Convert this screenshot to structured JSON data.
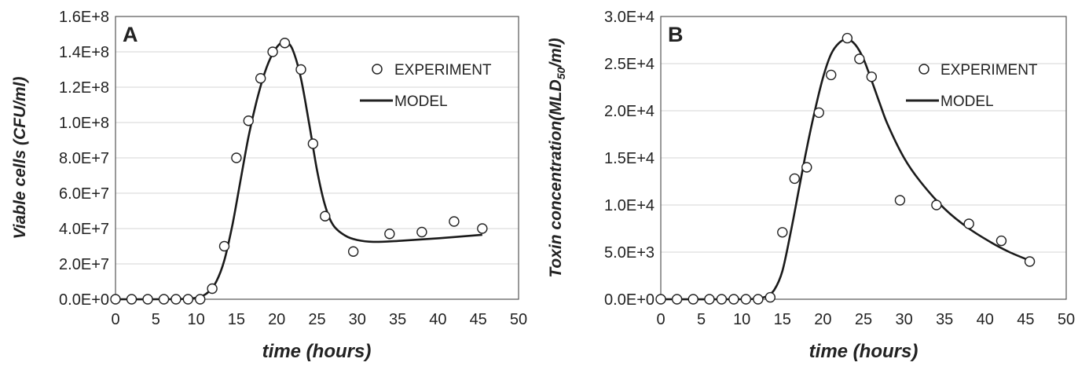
{
  "chart_data": [
    {
      "type": "scatter",
      "panel_label": "A",
      "xlabel": "time (hours)",
      "ylabel": "Viable cells (CFU/ml)",
      "xlim": [
        0,
        50
      ],
      "ylim": [
        0,
        160000000
      ],
      "x_ticks": [
        "0",
        "5",
        "10",
        "15",
        "20",
        "25",
        "30",
        "35",
        "40",
        "45",
        "50"
      ],
      "y_ticks": [
        "0.0E+0",
        "2.0E+7",
        "4.0E+7",
        "6.0E+7",
        "8.0E+7",
        "1.0E+8",
        "1.2E+8",
        "1.4E+8",
        "1.6E+8"
      ],
      "grid": "horizontal",
      "legend_placement": "upper-right",
      "series": [
        {
          "name": "EXPERIMENT",
          "kind": "markers",
          "marker": "open-circle",
          "x": [
            0,
            2,
            4,
            6,
            7.5,
            9,
            10.5,
            12,
            13.5,
            15,
            16.5,
            18,
            19.5,
            21,
            23,
            24.5,
            26,
            29.5,
            34,
            38,
            42,
            45.5
          ],
          "y": [
            0,
            0,
            0,
            0,
            0,
            0,
            0,
            6000000,
            30000000,
            80000000,
            101000000,
            125000000,
            140000000,
            145000000,
            130000000,
            88000000,
            47000000,
            27000000,
            37000000,
            38000000,
            44000000,
            40000000
          ]
        },
        {
          "name": "MODEL",
          "kind": "line",
          "x": [
            0,
            5,
            9,
            10.5,
            11.5,
            12.5,
            13.5,
            14.5,
            15.5,
            16.5,
            17.5,
            18.5,
            19.5,
            20.5,
            21.2,
            22,
            23,
            24,
            25,
            26,
            27,
            28.5,
            30,
            32,
            35,
            40,
            45.5
          ],
          "y": [
            0,
            0,
            300000,
            1500000,
            4000000,
            10000000,
            22000000,
            42000000,
            67000000,
            92000000,
            112000000,
            128000000,
            139000000,
            145000000,
            145500000,
            141000000,
            125000000,
            100000000,
            73000000,
            53000000,
            42000000,
            36000000,
            33500000,
            32500000,
            33000000,
            34500000,
            36500000
          ]
        }
      ]
    },
    {
      "type": "scatter",
      "panel_label": "B",
      "xlabel": "time (hours)",
      "ylabel_main": "Toxin concentration(MLD",
      "ylabel_sub": "50",
      "ylabel_end": "/ml)",
      "xlim": [
        0,
        50
      ],
      "ylim": [
        0,
        30000
      ],
      "x_ticks": [
        "0",
        "5",
        "10",
        "15",
        "20",
        "25",
        "30",
        "35",
        "40",
        "45",
        "50"
      ],
      "y_ticks": [
        "0.0E+0",
        "5.0E+3",
        "1.0E+4",
        "1.5E+4",
        "2.0E+4",
        "2.5E+4",
        "3.0E+4"
      ],
      "grid": "horizontal",
      "legend_placement": "upper-right",
      "series": [
        {
          "name": "EXPERIMENT",
          "kind": "markers",
          "marker": "open-circle",
          "x": [
            0,
            2,
            4,
            6,
            7.5,
            9,
            10.5,
            12,
            13.5,
            15,
            16.5,
            18,
            19.5,
            21,
            23,
            24.5,
            26,
            29.5,
            34,
            38,
            42,
            45.5
          ],
          "y": [
            0,
            0,
            0,
            0,
            0,
            0,
            0,
            0,
            200,
            7100,
            12800,
            14000,
            19800,
            23800,
            27700,
            25500,
            23600,
            10500,
            10000,
            8000,
            6200,
            4000
          ]
        },
        {
          "name": "MODEL",
          "kind": "line",
          "x": [
            0,
            10,
            12,
            13,
            14,
            15,
            16,
            17,
            18,
            19,
            20,
            21,
            22,
            23,
            24,
            25,
            26,
            27,
            28,
            30,
            32,
            35,
            38,
            41,
            43,
            45.5
          ],
          "y": [
            0,
            0,
            100,
            300,
            1000,
            3000,
            7000,
            11500,
            16000,
            20000,
            23500,
            26000,
            27200,
            27600,
            27000,
            25500,
            23200,
            20800,
            18500,
            15000,
            12500,
            9600,
            7500,
            5900,
            5000,
            4100
          ]
        }
      ]
    }
  ]
}
